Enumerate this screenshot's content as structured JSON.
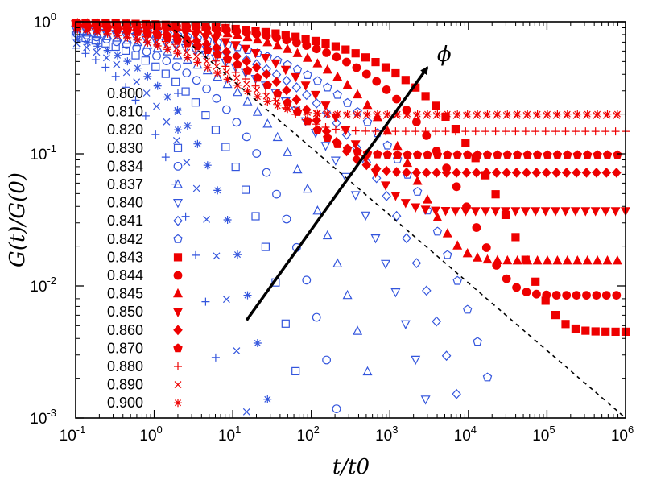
{
  "chart_data": {
    "type": "scatter",
    "title": "",
    "xlabel": "t/t0",
    "ylabel": "G(t)/G(0)",
    "xscale": "log",
    "yscale": "log",
    "xlim": [
      0.1,
      1000000
    ],
    "ylim": [
      0.001,
      1
    ],
    "x_ticks": [
      {
        "base": "10",
        "exp": "-1",
        "value": 0.1
      },
      {
        "base": "10",
        "exp": "0",
        "value": 1
      },
      {
        "base": "10",
        "exp": "1",
        "value": 10
      },
      {
        "base": "10",
        "exp": "2",
        "value": 100
      },
      {
        "base": "10",
        "exp": "3",
        "value": 1000
      },
      {
        "base": "10",
        "exp": "4",
        "value": 10000
      },
      {
        "base": "10",
        "exp": "5",
        "value": 100000
      },
      {
        "base": "10",
        "exp": "6",
        "value": 1000000
      }
    ],
    "y_ticks": [
      {
        "base": "10",
        "exp": "0",
        "value": 1
      },
      {
        "base": "10",
        "exp": "-1",
        "value": 0.1
      },
      {
        "base": "10",
        "exp": "-2",
        "value": 0.01
      },
      {
        "base": "10",
        "exp": "-3",
        "value": 0.001
      }
    ],
    "legend_title": "",
    "legend_position": "left",
    "arrow_label": "ϕ",
    "arrow_from": {
      "x": 15,
      "y": 0.0055
    },
    "arrow_to": {
      "x": 3000,
      "y": 0.45
    },
    "reference_line": {
      "style": "dashed",
      "color": "#000000",
      "from": {
        "x": 1.5,
        "y": 0.95
      },
      "to": {
        "x": 1000000,
        "y": 0.001
      }
    },
    "series": [
      {
        "name": "0.800",
        "marker": "plus",
        "filled": false,
        "color": "#3355dd",
        "g_inf": 0,
        "tau": 0.35,
        "beta": 0.62
      },
      {
        "name": "0.810",
        "marker": "cross",
        "filled": false,
        "color": "#3355dd",
        "g_inf": 0,
        "tau": 0.55,
        "beta": 0.58
      },
      {
        "name": "0.820",
        "marker": "asterisk",
        "filled": false,
        "color": "#3355dd",
        "g_inf": 0,
        "tau": 0.9,
        "beta": 0.55
      },
      {
        "name": "0.830",
        "marker": "square",
        "filled": false,
        "color": "#3355dd",
        "g_inf": 0,
        "tau": 1.7,
        "beta": 0.5
      },
      {
        "name": "0.834",
        "marker": "circle",
        "filled": false,
        "color": "#3355dd",
        "g_inf": 0,
        "tau": 3.3,
        "beta": 0.46
      },
      {
        "name": "0.837",
        "marker": "triangle",
        "filled": false,
        "color": "#3355dd",
        "g_inf": 0,
        "tau": 7,
        "beta": 0.42
      },
      {
        "name": "0.840",
        "marker": "tri-down",
        "filled": false,
        "color": "#3355dd",
        "g_inf": 0,
        "tau": 20,
        "beta": 0.38
      },
      {
        "name": "0.841",
        "marker": "diamond",
        "filled": false,
        "color": "#3355dd",
        "g_inf": 0,
        "tau": 45,
        "beta": 0.37
      },
      {
        "name": "0.842",
        "marker": "pentagon",
        "filled": false,
        "color": "#3355dd",
        "g_inf": 0,
        "tau": 110,
        "beta": 0.36
      },
      {
        "name": "0.843",
        "marker": "square",
        "filled": true,
        "color": "#ee0000",
        "g_inf": 0.0045,
        "tau": 1500,
        "beta": 0.42
      },
      {
        "name": "0.844",
        "marker": "circle",
        "filled": true,
        "color": "#ee0000",
        "g_inf": 0.0085,
        "tau": 600,
        "beta": 0.45
      },
      {
        "name": "0.845",
        "marker": "triangle",
        "filled": true,
        "color": "#ee0000",
        "g_inf": 0.0155,
        "tau": 220,
        "beta": 0.48
      },
      {
        "name": "0.850",
        "marker": "tri-down",
        "filled": true,
        "color": "#ee0000",
        "g_inf": 0.037,
        "tau": 60,
        "beta": 0.5
      },
      {
        "name": "0.860",
        "marker": "diamond",
        "filled": true,
        "color": "#ee0000",
        "g_inf": 0.072,
        "tau": 25,
        "beta": 0.5
      },
      {
        "name": "0.870",
        "marker": "pentagon",
        "filled": true,
        "color": "#ee0000",
        "g_inf": 0.098,
        "tau": 15,
        "beta": 0.5
      },
      {
        "name": "0.880",
        "marker": "plus",
        "filled": false,
        "color": "#ee0000",
        "g_inf": 0.148,
        "tau": 8,
        "beta": 0.5
      },
      {
        "name": "0.890",
        "marker": "cross",
        "filled": false,
        "color": "#ee0000",
        "g_inf": 0.195,
        "tau": 5,
        "beta": 0.5
      },
      {
        "name": "0.900",
        "marker": "asterisk",
        "filled": false,
        "color": "#ee0000",
        "g_inf": 0.2,
        "tau": 3.5,
        "beta": 0.5
      }
    ]
  }
}
